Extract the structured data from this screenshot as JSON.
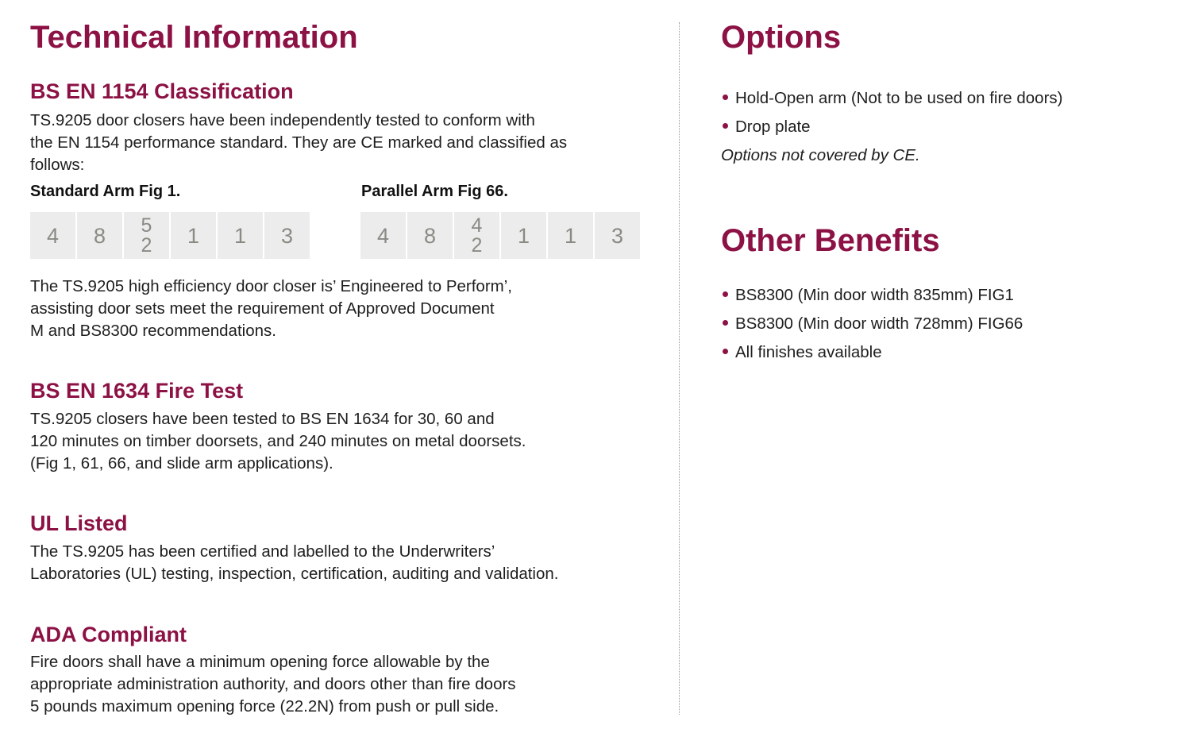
{
  "colors": {
    "accent": "#8c1144",
    "text": "#1e1e1e",
    "box_bg": "#ececec",
    "box_text": "#8a8a84"
  },
  "left": {
    "title": "Technical Information",
    "classification": {
      "heading": "BS EN 1154 Classification",
      "lines": [
        "TS.9205 door closers have been independently tested to conform with",
        "the EN 1154 performance standard. They are CE marked and classified as",
        "follows:"
      ],
      "standard": {
        "label": "Standard Arm Fig 1.",
        "digits": [
          "4",
          "8",
          [
            "5",
            "2"
          ],
          "1",
          "1",
          "3"
        ]
      },
      "parallel": {
        "label": "Parallel Arm Fig 66.",
        "digits": [
          "4",
          "8",
          [
            "4",
            "2"
          ],
          "1",
          "1",
          "3"
        ]
      },
      "after": [
        "The TS.9205 high efficiency door closer is’ Engineered to Perform’,",
        "assisting door sets meet the requirement of Approved Document",
        "M and BS8300 recommendations."
      ]
    },
    "fire": {
      "heading": "BS EN 1634 Fire Test",
      "lines": [
        "TS.9205 closers have been tested to BS EN 1634 for 30, 60 and",
        "120 minutes on timber doorsets, and 240 minutes on metal doorsets.",
        "(Fig 1, 61, 66, and slide arm applications)."
      ]
    },
    "ul": {
      "heading": "UL Listed",
      "lines": [
        "The TS.9205 has been certified and labelled to the Underwriters’",
        "Laboratories (UL) testing, inspection, certification, auditing and validation."
      ]
    },
    "ada": {
      "heading": "ADA Compliant",
      "lines": [
        "Fire doors shall have a minimum opening force allowable by the",
        "appropriate administration authority, and doors other than fire doors",
        "5 pounds maximum opening force (22.2N) from push or pull side."
      ]
    }
  },
  "right": {
    "options": {
      "title": "Options",
      "items": [
        "Hold-Open arm (Not to be used on fire doors)",
        "Drop plate"
      ],
      "note": "Options not covered by CE."
    },
    "benefits": {
      "title": "Other Benefits",
      "items": [
        "BS8300 (Min door width 835mm) FIG1",
        "BS8300 (Min door width 728mm) FIG66",
        "All finishes available"
      ]
    }
  }
}
